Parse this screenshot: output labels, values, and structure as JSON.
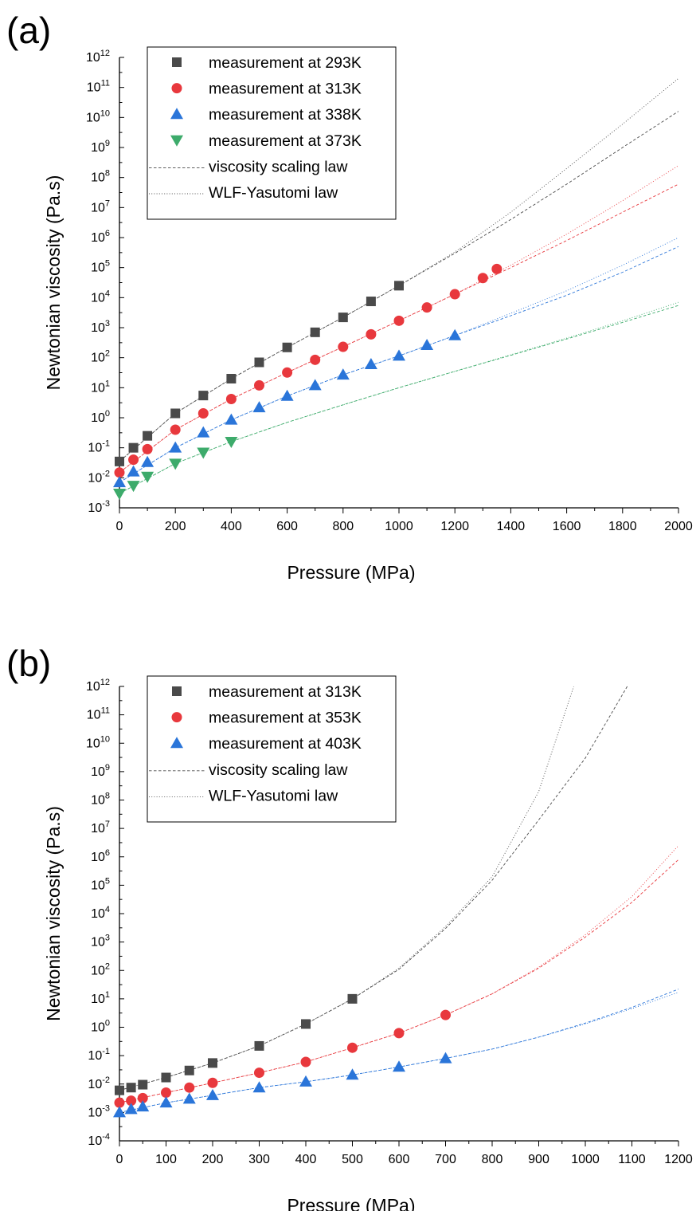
{
  "chart_data": [
    {
      "panel_label": "(a)",
      "type": "scatter",
      "xlabel": "Pressure (MPa)",
      "ylabel": "Newtonian viscosity (Pa.s)",
      "xlim": [
        0,
        2000
      ],
      "ylim_log10": [
        -3,
        12
      ],
      "y_scale": "log",
      "x_ticks": [
        0,
        200,
        400,
        600,
        800,
        1000,
        1200,
        1400,
        1600,
        1800,
        2000
      ],
      "y_tick_exponents": [
        -3,
        -2,
        -1,
        0,
        1,
        2,
        3,
        4,
        5,
        6,
        7,
        8,
        9,
        10,
        11,
        12
      ],
      "legend_position": "top-left",
      "legend": {
        "markers": [
          "measurement at 293K",
          "measurement at 313K",
          "measurement at 338K",
          "measurement at 373K"
        ],
        "lines": [
          "viscosity scaling law",
          "WLF-Yasutomi law"
        ]
      },
      "series": [
        {
          "name": "measurement at 293K",
          "marker": "square",
          "color": "#4a4a4a",
          "x": [
            0,
            50,
            100,
            200,
            300,
            400,
            500,
            600,
            700,
            800,
            900,
            1000
          ],
          "y": [
            0.035,
            0.1,
            0.25,
            1.4,
            5.5,
            20,
            70,
            220,
            700,
            2200,
            7500,
            25000
          ]
        },
        {
          "name": "measurement at 313K",
          "marker": "circle",
          "color": "#e8383d",
          "x": [
            0,
            50,
            100,
            200,
            300,
            400,
            500,
            600,
            700,
            800,
            900,
            1000,
            1100,
            1200,
            1300,
            1350
          ],
          "y": [
            0.015,
            0.04,
            0.09,
            0.4,
            1.4,
            4.2,
            12,
            32,
            85,
            230,
            600,
            1700,
            4700,
            13000,
            45000,
            90000
          ]
        },
        {
          "name": "measurement at 338K",
          "marker": "triangle-up",
          "color": "#2a75d9",
          "x": [
            0,
            50,
            100,
            200,
            300,
            400,
            500,
            600,
            700,
            800,
            900,
            1000,
            1100,
            1200
          ],
          "y": [
            0.007,
            0.016,
            0.033,
            0.1,
            0.32,
            0.85,
            2.2,
            5.3,
            12,
            27,
            60,
            115,
            260,
            550
          ]
        },
        {
          "name": "measurement at 373K",
          "marker": "triangle-down",
          "color": "#3dab6b",
          "x": [
            0,
            50,
            100,
            200,
            300,
            400
          ],
          "y": [
            0.003,
            0.0055,
            0.011,
            0.03,
            0.07,
            0.16
          ]
        }
      ],
      "lines": [
        {
          "law": "viscosity scaling law",
          "color": "#4a4a4a",
          "style": "dashed",
          "x": [
            0,
            200,
            400,
            600,
            800,
            1000,
            1200,
            1400,
            1600,
            1800,
            2000
          ],
          "y": [
            0.035,
            1.4,
            20,
            220,
            2200,
            25000,
            300000,
            4000000,
            60000000,
            1000000000,
            16000000000
          ]
        },
        {
          "law": "WLF-Yasutomi law",
          "color": "#4a4a4a",
          "style": "dotted",
          "x": [
            0,
            200,
            400,
            600,
            800,
            1000,
            1200,
            1400,
            1600,
            1800,
            2000
          ],
          "y": [
            0.035,
            1.4,
            20,
            220,
            2200,
            25000,
            330000,
            7000000,
            200000000,
            6000000000,
            200000000000
          ]
        },
        {
          "law": "viscosity scaling law",
          "color": "#e8383d",
          "style": "dashed",
          "x": [
            0,
            200,
            400,
            600,
            800,
            1000,
            1200,
            1400,
            1600,
            1800,
            2000
          ],
          "y": [
            0.015,
            0.4,
            4.2,
            32,
            230,
            1700,
            13000,
            100000,
            800000,
            7000000,
            60000000
          ]
        },
        {
          "law": "WLF-Yasutomi law",
          "color": "#e8383d",
          "style": "dotted",
          "x": [
            0,
            200,
            400,
            600,
            800,
            1000,
            1200,
            1400,
            1600,
            1800,
            2000
          ],
          "y": [
            0.015,
            0.4,
            4.2,
            32,
            230,
            1700,
            13000,
            120000,
            1300000,
            17000000,
            250000000
          ]
        },
        {
          "law": "viscosity scaling law",
          "color": "#2a75d9",
          "style": "dashed",
          "x": [
            0,
            200,
            400,
            600,
            800,
            1000,
            1200,
            1400,
            1600,
            1800,
            2000
          ],
          "y": [
            0.007,
            0.1,
            0.85,
            5.3,
            27,
            115,
            550,
            2500,
            12000,
            70000,
            500000
          ]
        },
        {
          "law": "WLF-Yasutomi law",
          "color": "#2a75d9",
          "style": "dotted",
          "x": [
            0,
            200,
            400,
            600,
            800,
            1000,
            1200,
            1400,
            1600,
            1800,
            2000
          ],
          "y": [
            0.007,
            0.1,
            0.85,
            5.3,
            27,
            115,
            550,
            3000,
            17000,
            120000,
            1000000
          ]
        },
        {
          "law": "viscosity scaling law",
          "color": "#3dab6b",
          "style": "dashed",
          "x": [
            0,
            200,
            400,
            600,
            800,
            1000,
            1200,
            1400,
            1600,
            1800,
            2000
          ],
          "y": [
            0.003,
            0.03,
            0.16,
            0.7,
            2.7,
            10,
            35,
            120,
            420,
            1500,
            5500
          ]
        },
        {
          "law": "WLF-Yasutomi law",
          "color": "#3dab6b",
          "style": "dotted",
          "x": [
            0,
            200,
            400,
            600,
            800,
            1000,
            1200,
            1400,
            1600,
            1800,
            2000
          ],
          "y": [
            0.003,
            0.03,
            0.16,
            0.7,
            2.7,
            10,
            35,
            125,
            450,
            1700,
            7000
          ]
        }
      ]
    },
    {
      "panel_label": "(b)",
      "type": "scatter",
      "xlabel": "Pressure (MPa)",
      "ylabel": "Newtonian viscosity (Pa.s)",
      "xlim": [
        0,
        1200
      ],
      "ylim_log10": [
        -4,
        12
      ],
      "y_scale": "log",
      "x_ticks": [
        0,
        100,
        200,
        300,
        400,
        500,
        600,
        700,
        800,
        900,
        1000,
        1100,
        1200
      ],
      "y_tick_exponents": [
        -4,
        -3,
        -2,
        -1,
        0,
        1,
        2,
        3,
        4,
        5,
        6,
        7,
        8,
        9,
        10,
        11,
        12
      ],
      "legend_position": "top-left",
      "legend": {
        "markers": [
          "measurement at 313K",
          "measurement at 353K",
          "measurement at 403K"
        ],
        "lines": [
          "viscosity scaling law",
          "WLF-Yasutomi law"
        ]
      },
      "series": [
        {
          "name": "measurement at 313K",
          "marker": "square",
          "color": "#4a4a4a",
          "x": [
            0,
            25,
            50,
            100,
            150,
            200,
            300,
            400,
            500
          ],
          "y": [
            0.006,
            0.0075,
            0.0095,
            0.017,
            0.03,
            0.055,
            0.22,
            1.3,
            10
          ]
        },
        {
          "name": "measurement at 353K",
          "marker": "circle",
          "color": "#e8383d",
          "x": [
            0,
            25,
            50,
            100,
            150,
            200,
            300,
            400,
            500,
            600,
            700
          ],
          "y": [
            0.0022,
            0.0026,
            0.0032,
            0.005,
            0.0075,
            0.011,
            0.025,
            0.06,
            0.19,
            0.62,
            2.7
          ]
        },
        {
          "name": "measurement at 403K",
          "marker": "triangle-up",
          "color": "#2a75d9",
          "x": [
            0,
            25,
            50,
            100,
            150,
            200,
            300,
            400,
            500,
            600,
            700
          ],
          "y": [
            0.001,
            0.0013,
            0.0016,
            0.0022,
            0.003,
            0.004,
            0.0075,
            0.012,
            0.021,
            0.04,
            0.08
          ]
        }
      ],
      "lines": [
        {
          "law": "viscosity scaling law",
          "color": "#4a4a4a",
          "style": "dashed",
          "x": [
            0,
            100,
            200,
            300,
            400,
            500,
            600,
            700,
            800,
            900,
            1000,
            1090
          ],
          "y": [
            0.006,
            0.017,
            0.055,
            0.22,
            1.3,
            10,
            110,
            3000,
            150000,
            20000000,
            3000000000,
            1000000000000
          ]
        },
        {
          "law": "WLF-Yasutomi law",
          "color": "#4a4a4a",
          "style": "dotted",
          "x": [
            0,
            100,
            200,
            300,
            400,
            500,
            600,
            700,
            800,
            900,
            975
          ],
          "y": [
            0.006,
            0.017,
            0.055,
            0.22,
            1.3,
            10,
            120,
            3500,
            200000,
            200000000,
            1000000000000
          ]
        },
        {
          "law": "viscosity scaling law",
          "color": "#e8383d",
          "style": "dashed",
          "x": [
            0,
            100,
            200,
            300,
            400,
            500,
            600,
            700,
            800,
            900,
            1000,
            1100,
            1200
          ],
          "y": [
            0.0022,
            0.005,
            0.011,
            0.025,
            0.06,
            0.19,
            0.62,
            2.7,
            15,
            120,
            1500,
            25000,
            800000
          ]
        },
        {
          "law": "WLF-Yasutomi law",
          "color": "#e8383d",
          "style": "dotted",
          "x": [
            0,
            100,
            200,
            300,
            400,
            500,
            600,
            700,
            800,
            900,
            1000,
            1100,
            1200
          ],
          "y": [
            0.0022,
            0.005,
            0.011,
            0.025,
            0.06,
            0.19,
            0.62,
            2.7,
            15,
            130,
            1800,
            40000,
            2500000
          ]
        },
        {
          "law": "viscosity scaling law",
          "color": "#2a75d9",
          "style": "dashed",
          "x": [
            0,
            100,
            200,
            300,
            400,
            500,
            600,
            700,
            800,
            900,
            1000,
            1100,
            1200
          ],
          "y": [
            0.001,
            0.0022,
            0.004,
            0.0075,
            0.012,
            0.021,
            0.04,
            0.08,
            0.17,
            0.45,
            1.4,
            5,
            22
          ]
        },
        {
          "law": "WLF-Yasutomi law",
          "color": "#2a75d9",
          "style": "dotted",
          "x": [
            0,
            100,
            200,
            300,
            400,
            500,
            600,
            700,
            800,
            900,
            1000,
            1100,
            1200
          ],
          "y": [
            0.001,
            0.0022,
            0.004,
            0.0075,
            0.012,
            0.021,
            0.04,
            0.08,
            0.17,
            0.45,
            1.3,
            4.5,
            17
          ]
        }
      ]
    }
  ]
}
